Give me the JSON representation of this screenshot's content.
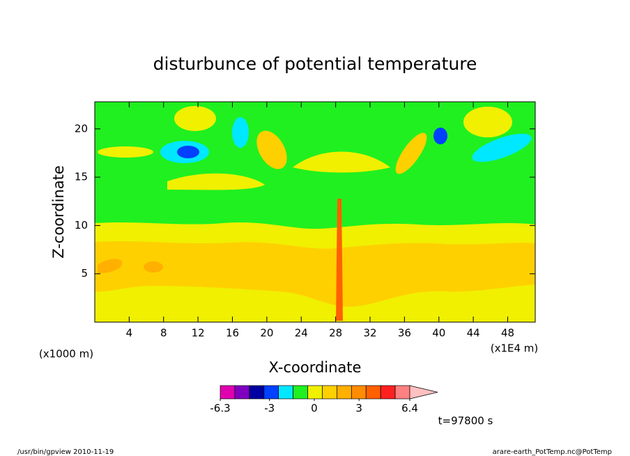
{
  "chart_data": {
    "type": "contour",
    "title": "disturbunce of potential temperature",
    "x_label": "X-coordinate",
    "y_label": "Z-coordinate",
    "x_unit_left": "(x1000 m)",
    "x_unit_right": "(x1E4 m)",
    "xlim": [
      0,
      51.2
    ],
    "ylim": [
      0,
      22.8
    ],
    "xticks": [
      4,
      8,
      12,
      16,
      20,
      24,
      28,
      32,
      36,
      40,
      44,
      48
    ],
    "yticks": [
      5,
      10,
      15,
      20
    ],
    "colorbar": {
      "lim": [
        -6.3,
        6.4
      ],
      "ticks": [
        -6.3,
        -3,
        0,
        3,
        6.4
      ],
      "colors": [
        "#e000b0",
        "#8000c0",
        "#0000a0",
        "#0040ff",
        "#00e8ff",
        "#20f020",
        "#f0f000",
        "#ffd000",
        "#ffb000",
        "#ff8c00",
        "#ff6000",
        "#ff2020",
        "#ff8080"
      ],
      "extend_color": "#ffc0c0"
    },
    "time_label": "t=97800 s",
    "footer_left": "/usr/bin/gpview   2010-11-19",
    "footer_right": "arare-earth_PotTemp.nc@PotTemp"
  }
}
